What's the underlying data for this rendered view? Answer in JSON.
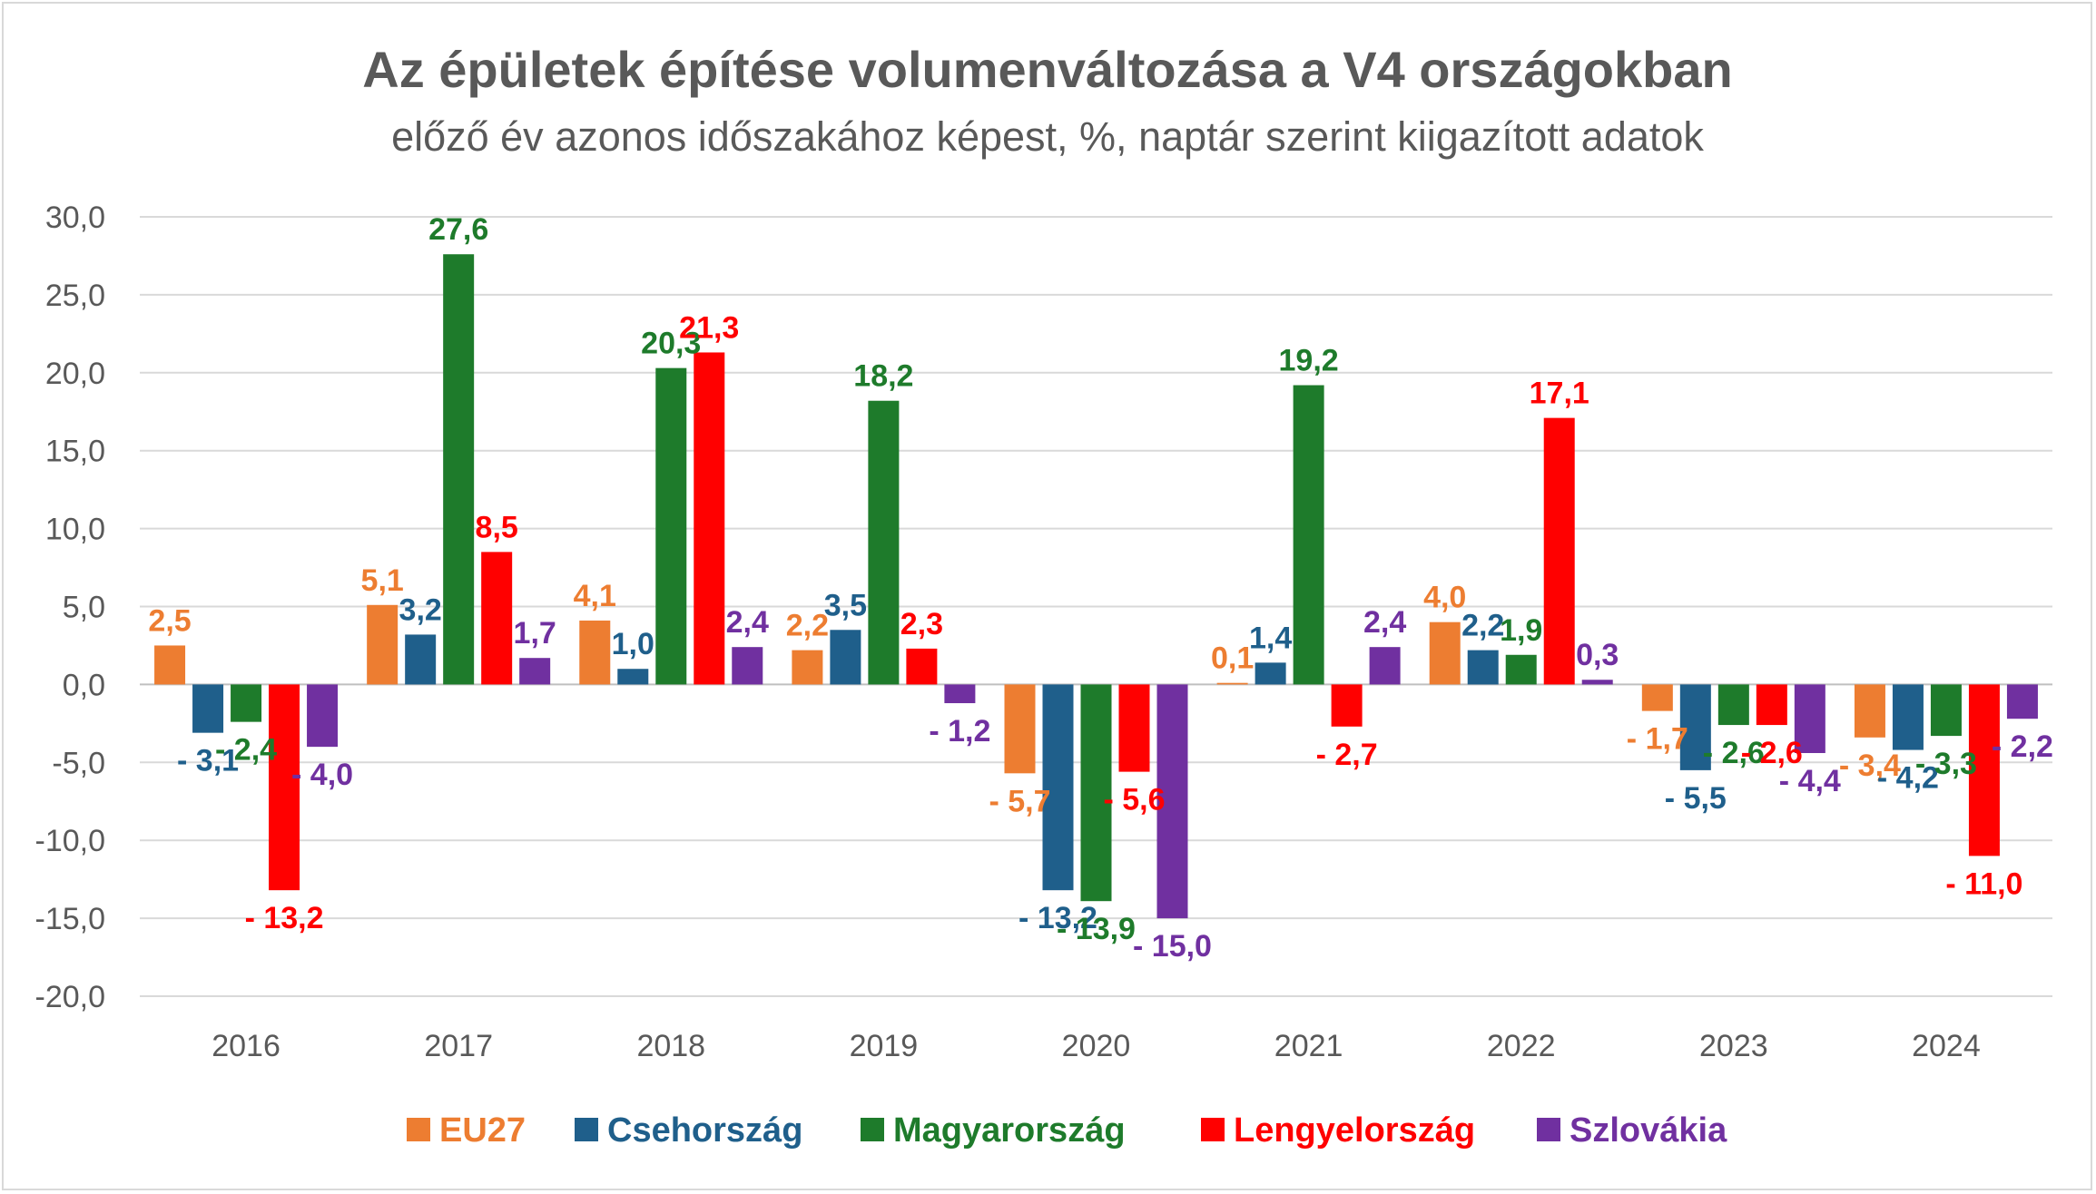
{
  "chart_data": {
    "type": "bar",
    "title": "Az épületek építése volumenváltozása a V4 országokban",
    "subtitle": "előző év azonos időszakához képest, %, naptár szerint kiigazított adatok",
    "categories": [
      "2016",
      "2017",
      "2018",
      "2019",
      "2020",
      "2021",
      "2022",
      "2023",
      "2024"
    ],
    "ylim": [
      -20,
      30
    ],
    "yticks": [
      30,
      25,
      20,
      15,
      10,
      5,
      0,
      -5,
      -10,
      -15,
      -20
    ],
    "ytick_labels": [
      "30,0",
      "25,0",
      "20,0",
      "15,0",
      "10,0",
      "5,0",
      "0,0",
      "-5,0",
      "-10,0",
      "-15,0",
      "-20,0"
    ],
    "grid": true,
    "legend_position": "bottom",
    "series": [
      {
        "name": "EU27",
        "color": "#ED7D31",
        "values": [
          2.5,
          5.1,
          4.1,
          2.2,
          -5.7,
          0.1,
          4.0,
          -1.7,
          -3.4
        ],
        "labels": [
          "2,5",
          "5,1",
          "4,1",
          "2,2",
          "- 5,7",
          "0,1",
          "4,0",
          "- 1,7",
          "- 3,4"
        ]
      },
      {
        "name": "Csehország",
        "color": "#1F5F8B",
        "values": [
          -3.1,
          3.2,
          1.0,
          3.5,
          -13.2,
          1.4,
          2.2,
          -5.5,
          -4.2
        ],
        "labels": [
          "- 3,1",
          "3,2",
          "1,0",
          "3,5",
          "- 13,2",
          "1,4",
          "2,2",
          "- 5,5",
          "- 4,2"
        ]
      },
      {
        "name": "Magyarország",
        "color": "#1E7B2B",
        "values": [
          -2.4,
          27.6,
          20.3,
          18.2,
          -13.9,
          19.2,
          1.9,
          -2.6,
          -3.3
        ],
        "labels": [
          "- 2,4",
          "27,6",
          "20,3",
          "18,2",
          "- 13,9",
          "19,2",
          "1,9",
          "- 2,6",
          "- 3,3"
        ]
      },
      {
        "name": "Lengyelország",
        "color": "#FF0000",
        "values": [
          -13.2,
          8.5,
          21.3,
          2.3,
          -5.6,
          -2.7,
          17.1,
          -2.6,
          -11.0
        ],
        "labels": [
          "- 13,2",
          "8,5",
          "21,3",
          "2,3",
          "- 5,6",
          "- 2,7",
          "17,1",
          "- 2,6",
          "- 11,0"
        ]
      },
      {
        "name": "Szlovákia",
        "color": "#7030A0",
        "values": [
          -4.0,
          1.7,
          2.4,
          -1.2,
          -15.0,
          2.4,
          0.3,
          -4.4,
          -2.2
        ],
        "labels": [
          "- 4,0",
          "1,7",
          "2,4",
          "- 1,2",
          "- 15,0",
          "2,4",
          "0,3",
          "- 4,4",
          "- 2,2"
        ]
      }
    ]
  }
}
